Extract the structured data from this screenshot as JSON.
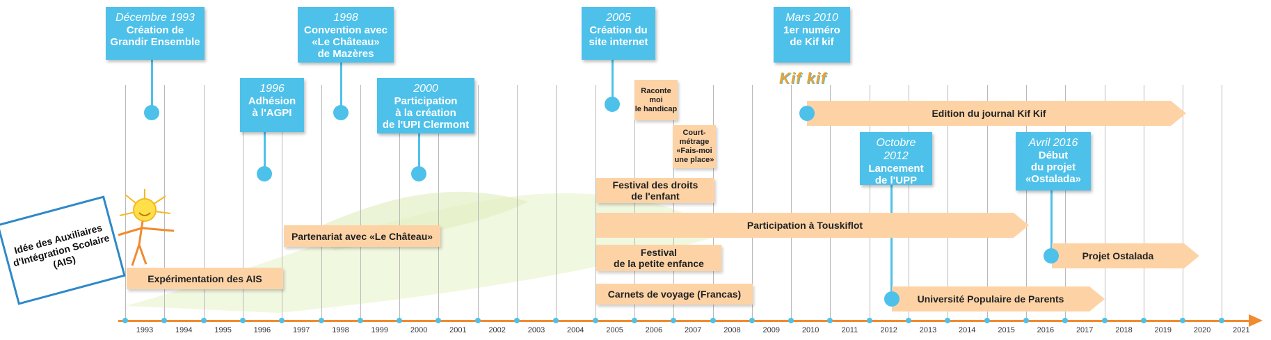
{
  "years": [
    "1993",
    "1994",
    "1995",
    "1996",
    "1997",
    "1998",
    "1999",
    "2000",
    "2001",
    "2002",
    "2003",
    "2004",
    "2005",
    "2006",
    "2007",
    "2008",
    "2009",
    "2010",
    "2011",
    "2012",
    "2013",
    "2014",
    "2015",
    "2016",
    "2017",
    "2018",
    "2019",
    "2020",
    "2021"
  ],
  "events": [
    {
      "key": "e1993",
      "date": "Décembre 1993",
      "text": "Création de\nGrandir Ensemble"
    },
    {
      "key": "e1996",
      "date": "1996",
      "text": "Adhésion\nà l'AGPI"
    },
    {
      "key": "e1998",
      "date": "1998",
      "text": "Convention avec\n«Le Château»\nde Mazères"
    },
    {
      "key": "e2000",
      "date": "2000",
      "text": "Participation\nà la création\nde l'UPI Clermont"
    },
    {
      "key": "e2005",
      "date": "2005",
      "text": "Création du\nsite internet"
    },
    {
      "key": "e2010",
      "date": "Mars 2010",
      "text": "1er numéro\nde Kif kif"
    },
    {
      "key": "e2012",
      "date": "Octobre 2012",
      "text": "Lancement\nde l'UPP"
    },
    {
      "key": "e2016",
      "date": "Avril 2016",
      "text": "Début\ndu projet\n«Ostalada»"
    }
  ],
  "projects": {
    "ais": "Idée des Auxiliaires\nd'Intégration Scolaire\n(AIS)",
    "experimentation": "Expérimentation des AIS",
    "partenariat": "Partenariat avec «Le Château»",
    "raconte": "Raconte\nmoi\nle handicap",
    "court": "Court-\nmétrage\n«Fais-moi\nune place»",
    "festival_droits": "Festival des droits\nde l'enfant",
    "festival_petite": "Festival\nde la petite enfance",
    "carnets": "Carnets de voyage (Francas)",
    "touskiflot": "Participation à Touskiflot",
    "kifkif_journal": "Edition du journal Kif Kif",
    "ostalada": "Projet Ostalada",
    "upp": "Université Populaire de Parents"
  },
  "logo_text": "Kif kif",
  "colors": {
    "event": "#4dc1ea",
    "bar": "#fdd3a6",
    "axis": "#f28a2e",
    "grid": "#b9b9b9"
  }
}
